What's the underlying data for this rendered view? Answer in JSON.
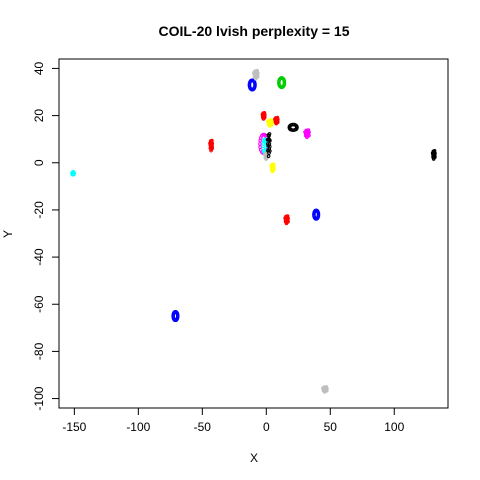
{
  "chart_data": {
    "type": "scatter",
    "title": "COIL-20 lvish perplexity = 15",
    "xlabel": "X",
    "ylabel": "Y",
    "xlim": [
      -162,
      142
    ],
    "ylim": [
      -104,
      44
    ],
    "xticks": [
      -150,
      -100,
      -50,
      0,
      50,
      100
    ],
    "yticks": [
      40,
      20,
      0,
      -20,
      -40,
      -60,
      -80,
      -100
    ],
    "grid": false,
    "legend": "none",
    "clusters": [
      {
        "color": "#00ffff",
        "cx": -151,
        "cy": -4.5,
        "rx": 1.5,
        "ry": 1.2,
        "kind": "dot"
      },
      {
        "color": "#0000ff",
        "cx": -71,
        "cy": -65,
        "rx": 1.8,
        "ry": 1.8,
        "kind": "ring"
      },
      {
        "color": "#ff0000",
        "cx": -43,
        "cy": 7.5,
        "rx": 1.0,
        "ry": 2.5,
        "kind": "blob"
      },
      {
        "color": "#0000ff",
        "cx": -11,
        "cy": 33,
        "rx": 2.2,
        "ry": 2.0,
        "kind": "ring"
      },
      {
        "color": "#bebebe",
        "cx": -8,
        "cy": 37.5,
        "rx": 2.0,
        "ry": 2.0,
        "kind": "blob"
      },
      {
        "color": "#00cd00",
        "cx": 12,
        "cy": 34,
        "rx": 2.2,
        "ry": 2.0,
        "kind": "ring"
      },
      {
        "color": "#ff0000",
        "cx": -2,
        "cy": 20,
        "rx": 1.2,
        "ry": 1.5,
        "kind": "blob"
      },
      {
        "color": "#ff0000",
        "cx": 8,
        "cy": 18,
        "rx": 1.5,
        "ry": 1.5,
        "kind": "blob"
      },
      {
        "color": "#ffff00",
        "cx": 3,
        "cy": 17,
        "rx": 2.0,
        "ry": 1.5,
        "kind": "blob"
      },
      {
        "color": "#000000",
        "cx": 21,
        "cy": 15,
        "rx": 3.0,
        "ry": 1.2,
        "kind": "ring"
      },
      {
        "color": "#ff00ff",
        "cx": 32,
        "cy": 12.5,
        "rx": 2.0,
        "ry": 1.8,
        "kind": "blob"
      },
      {
        "color": "#ff00ff",
        "cx": -2,
        "cy": 8,
        "rx": 3.0,
        "ry": 4.0,
        "kind": "ring"
      },
      {
        "color": "#00ffff",
        "cx": -1,
        "cy": 7,
        "rx": 1.5,
        "ry": 3.0,
        "kind": "ring"
      },
      {
        "color": "#bebebe",
        "cx": 0,
        "cy": 3,
        "rx": 1.0,
        "ry": 1.5,
        "kind": "blob"
      },
      {
        "color": "#000000",
        "cx": 2,
        "cy": 8,
        "rx": 1.2,
        "ry": 5.5,
        "kind": "blob"
      },
      {
        "color": "#ffff00",
        "cx": 5,
        "cy": -2,
        "rx": 1.3,
        "ry": 1.8,
        "kind": "blob"
      },
      {
        "color": "#000000",
        "cx": 131,
        "cy": 3.5,
        "rx": 1.0,
        "ry": 2.0,
        "kind": "blob"
      },
      {
        "color": "#0000ff",
        "cx": 39,
        "cy": -22,
        "rx": 1.8,
        "ry": 1.8,
        "kind": "ring"
      },
      {
        "color": "#ff0000",
        "cx": 16,
        "cy": -24,
        "rx": 1.5,
        "ry": 1.8,
        "kind": "blob"
      },
      {
        "color": "#bebebe",
        "cx": 46,
        "cy": -96,
        "rx": 2.0,
        "ry": 1.2,
        "kind": "blob"
      }
    ]
  }
}
